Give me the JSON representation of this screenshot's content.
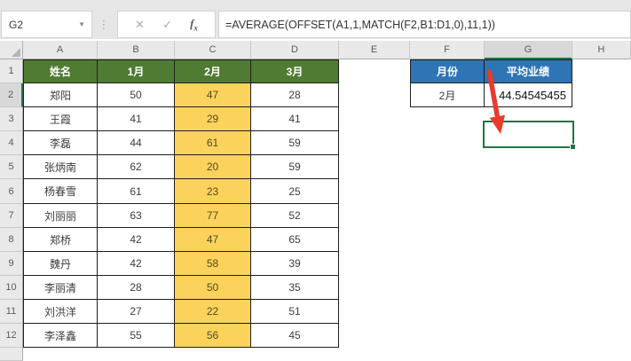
{
  "formula_bar": {
    "name_box_value": "G2",
    "formula": "=AVERAGE(OFFSET(A1,1,MATCH(F2,B1:D1,0),11,1))",
    "cancel_icon": "✕",
    "enter_icon": "✓",
    "insert_function_label": "f"
  },
  "grid": {
    "column_letters": [
      "A",
      "B",
      "C",
      "D",
      "E",
      "F",
      "G",
      "H"
    ],
    "row_numbers": [
      1,
      2,
      3,
      4,
      5,
      6,
      7,
      8,
      9,
      10,
      11,
      12
    ],
    "selected_cell": "G2",
    "selected_column": "G",
    "selected_row": 2
  },
  "main_table": {
    "headers": [
      "姓名",
      "1月",
      "2月",
      "3月"
    ],
    "rows": [
      [
        "郑阳",
        "50",
        "47",
        "28"
      ],
      [
        "王霞",
        "41",
        "29",
        "41"
      ],
      [
        "李磊",
        "44",
        "61",
        "59"
      ],
      [
        "张炳南",
        "62",
        "20",
        "59"
      ],
      [
        "杨春雪",
        "61",
        "23",
        "25"
      ],
      [
        "刘丽丽",
        "63",
        "77",
        "52"
      ],
      [
        "郑桥",
        "42",
        "47",
        "65"
      ],
      [
        "魏丹",
        "42",
        "58",
        "39"
      ],
      [
        "李丽清",
        "28",
        "50",
        "35"
      ],
      [
        "刘洪洋",
        "27",
        "22",
        "51"
      ],
      [
        "李泽鑫",
        "55",
        "56",
        "45"
      ]
    ],
    "highlighted_month": "2月"
  },
  "lookup_table": {
    "headers": [
      "月份",
      "平均业绩"
    ],
    "month_value": "2月",
    "average_value": "44.54545455"
  },
  "colors": {
    "table_header_green": "#4F7B32",
    "month_highlight_gold": "#FBD35C",
    "lookup_header_blue": "#2E75B6",
    "selection_green": "#217346",
    "arrow_red": "#E93A2E"
  }
}
